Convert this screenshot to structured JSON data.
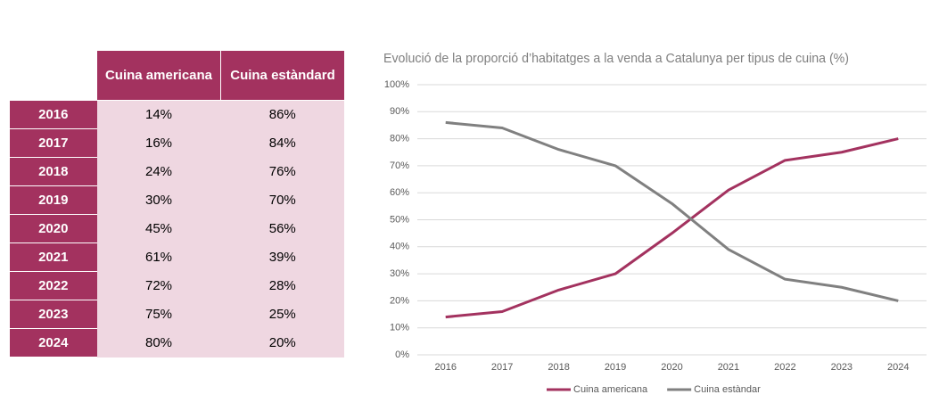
{
  "table": {
    "columns": [
      "Cuina americana",
      "Cuina estàndard"
    ],
    "rows": [
      [
        "2016",
        "14%",
        "86%"
      ],
      [
        "2017",
        "16%",
        "84%"
      ],
      [
        "2018",
        "24%",
        "76%"
      ],
      [
        "2019",
        "30%",
        "70%"
      ],
      [
        "2020",
        "45%",
        "56%"
      ],
      [
        "2021",
        "61%",
        "39%"
      ],
      [
        "2022",
        "72%",
        "28%"
      ],
      [
        "2023",
        "75%",
        "25%"
      ],
      [
        "2024",
        "80%",
        "20%"
      ]
    ]
  },
  "chart_data": {
    "type": "line",
    "title": "Evolució de la proporció d’habitatges a la venda a Catalunya per tipus de cuina (%)",
    "categories": [
      "2016",
      "2017",
      "2018",
      "2019",
      "2020",
      "2021",
      "2022",
      "2023",
      "2024"
    ],
    "series": [
      {
        "name": "Cuina americana",
        "color": "#a3325f",
        "values": [
          14,
          16,
          24,
          30,
          45,
          61,
          72,
          75,
          80
        ]
      },
      {
        "name": "Cuina estàndar",
        "color": "#808080",
        "values": [
          86,
          84,
          76,
          70,
          56,
          39,
          28,
          25,
          20
        ]
      }
    ],
    "ylim": [
      0,
      100
    ],
    "yticks": [
      {
        "value": 0,
        "label": "0%"
      },
      {
        "value": 10,
        "label": "10%"
      },
      {
        "value": 20,
        "label": "20%"
      },
      {
        "value": 30,
        "label": "30%"
      },
      {
        "value": 40,
        "label": "40%"
      },
      {
        "value": 50,
        "label": "50%"
      },
      {
        "value": 60,
        "label": "60%"
      },
      {
        "value": 70,
        "label": "70%"
      },
      {
        "value": 80,
        "label": "80%"
      },
      {
        "value": 90,
        "label": "90%"
      },
      {
        "value": 100,
        "label": "100%"
      }
    ],
    "grid": true,
    "legend": "bottom"
  }
}
